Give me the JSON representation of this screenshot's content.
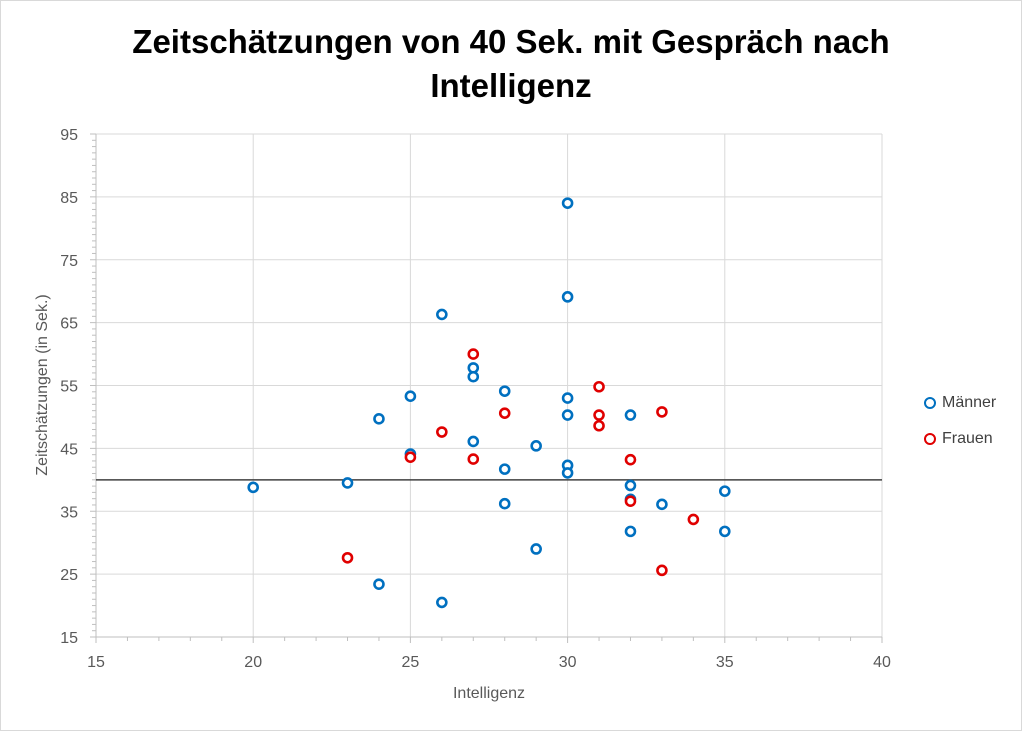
{
  "chart_data": {
    "type": "scatter",
    "title_lines": [
      "Zeitschätzungen von 40 Sek. mit Gespräch nach",
      "Intelligenz"
    ],
    "xlabel": "Intelligenz",
    "ylabel": "Zeitschätzungen (in Sek.)",
    "xlim": [
      15,
      40
    ],
    "ylim": [
      15,
      95
    ],
    "xticks": [
      15,
      20,
      25,
      30,
      35,
      40
    ],
    "yticks": [
      15,
      25,
      35,
      45,
      55,
      65,
      75,
      85,
      95
    ],
    "grid": true,
    "legend_position": "right",
    "reference_line": {
      "y": 40,
      "color": "#404040"
    },
    "series": [
      {
        "name": "Männer",
        "color": "#0070c0",
        "points": [
          [
            20,
            38.8
          ],
          [
            23,
            39.5
          ],
          [
            24,
            49.7
          ],
          [
            24,
            23.4
          ],
          [
            25,
            53.3
          ],
          [
            25,
            44.1
          ],
          [
            26,
            66.3
          ],
          [
            26,
            20.5
          ],
          [
            27,
            57.8
          ],
          [
            27,
            56.4
          ],
          [
            27,
            46.1
          ],
          [
            28,
            54.1
          ],
          [
            28,
            41.7
          ],
          [
            28,
            36.2
          ],
          [
            29,
            45.4
          ],
          [
            29,
            29
          ],
          [
            30,
            84
          ],
          [
            30,
            69.1
          ],
          [
            30,
            53
          ],
          [
            30,
            50.3
          ],
          [
            30,
            42.3
          ],
          [
            30,
            41.1
          ],
          [
            32,
            50.3
          ],
          [
            32,
            39.1
          ],
          [
            32,
            36.9
          ],
          [
            32,
            31.8
          ],
          [
            33,
            36.1
          ],
          [
            35,
            38.2
          ],
          [
            35,
            31.8
          ]
        ]
      },
      {
        "name": "Frauen",
        "color": "#e00000",
        "points": [
          [
            23,
            27.6
          ],
          [
            25,
            43.6
          ],
          [
            26,
            47.6
          ],
          [
            27,
            60
          ],
          [
            27,
            43.3
          ],
          [
            28,
            50.6
          ],
          [
            31,
            54.8
          ],
          [
            31,
            50.3
          ],
          [
            31,
            48.6
          ],
          [
            32,
            43.2
          ],
          [
            32,
            36.6
          ],
          [
            33,
            50.8
          ],
          [
            33,
            25.6
          ],
          [
            34,
            33.7
          ]
        ]
      }
    ]
  }
}
